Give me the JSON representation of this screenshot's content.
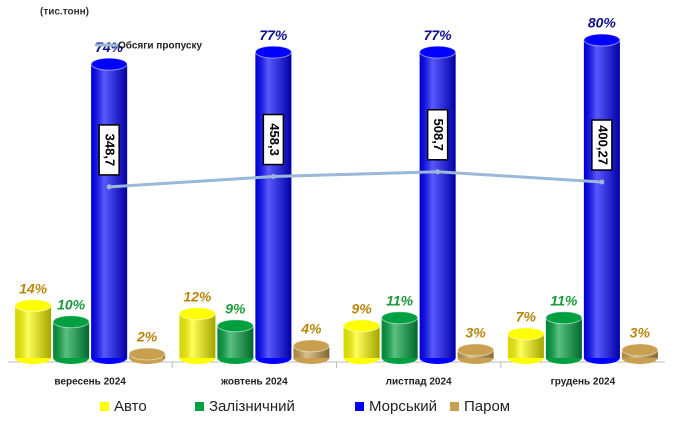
{
  "chart_data": {
    "type": "bar",
    "subtitle": "(тис.тонн)",
    "categories": [
      "вересень 2024",
      "жовтень 2024",
      "листпад 2024",
      "грудень 2024"
    ],
    "ylim": [
      0,
      80
    ],
    "y2lim": [
      -1500,
      1900
    ],
    "series": [
      {
        "name": "Авто",
        "color": "#ffff00",
        "label_color": "#b8860b",
        "values": [
          14,
          12,
          9,
          7
        ],
        "value_labels": [
          "14%",
          "12%",
          "9%",
          "7%"
        ]
      },
      {
        "name": "Залізничний",
        "color": "#00a040",
        "label_color": "#1a9a3a",
        "values": [
          10,
          9,
          11,
          11
        ],
        "value_labels": [
          "10%",
          "9%",
          "11%",
          "11%"
        ]
      },
      {
        "name": "Морський",
        "color": "#0000ff",
        "label_color": "#10108a",
        "values": [
          74,
          77,
          77,
          80
        ],
        "value_labels": [
          "74%",
          "77%",
          "77%",
          "80%"
        ]
      },
      {
        "name": "Паром",
        "color": "#c8a050",
        "label_color": "#b8860b",
        "values": [
          2,
          4,
          3,
          3
        ],
        "value_labels": [
          "2%",
          "4%",
          "3%",
          "3%"
        ]
      },
      {
        "name": "Обсяги пропуску",
        "type": "line",
        "axis": "y2",
        "color": "#9ab8d8",
        "values": [
          348.7,
          458.3,
          508.7,
          400.27
        ],
        "value_labels": [
          "348,7",
          "458,3",
          "508,7",
          "400,27"
        ]
      }
    ]
  }
}
